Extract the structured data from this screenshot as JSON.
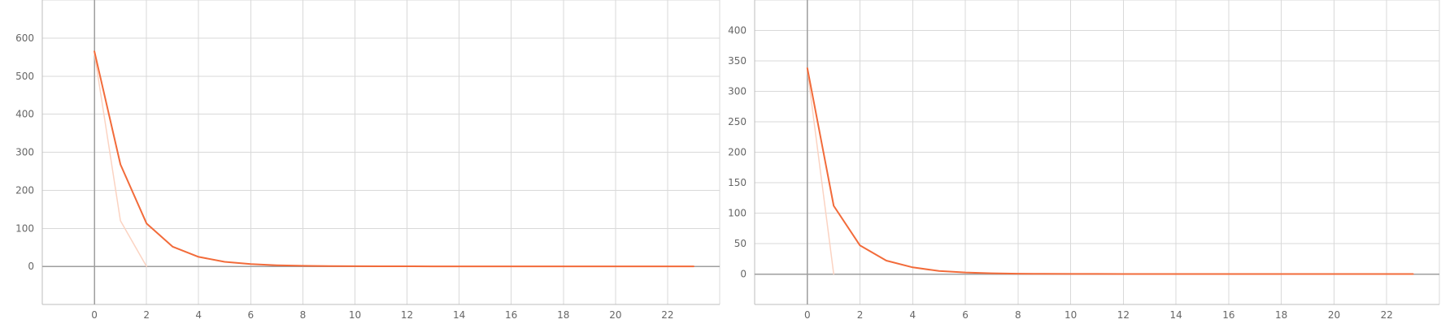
{
  "chart_data": [
    {
      "type": "line",
      "title": "",
      "xlabel": "",
      "ylabel": "",
      "xlim": [
        -2,
        24
      ],
      "ylim": [
        -100,
        700
      ],
      "x_ticks": [
        0,
        2,
        4,
        6,
        8,
        10,
        12,
        14,
        16,
        18,
        20,
        22
      ],
      "y_ticks": [
        0,
        100,
        200,
        300,
        400,
        500,
        600
      ],
      "grid": true,
      "legend": "none",
      "series": [
        {
          "color": "#fbd3c2",
          "x": [
            0,
            1,
            2
          ],
          "y": [
            560,
            120,
            0
          ]
        },
        {
          "color": "#f26b3a",
          "x": [
            0,
            1,
            2,
            3,
            4,
            5,
            6,
            7,
            8,
            9,
            10,
            11,
            12,
            13,
            14,
            15,
            16,
            17,
            18,
            19,
            20,
            21,
            22,
            23
          ],
          "y": [
            565,
            268,
            113,
            52,
            25,
            12,
            6,
            3,
            1.5,
            1,
            0.5,
            0.3,
            0.2,
            0.1,
            0.1,
            0,
            0,
            0,
            0,
            0,
            0,
            0,
            0,
            0
          ]
        }
      ]
    },
    {
      "type": "line",
      "title": "",
      "xlabel": "",
      "ylabel": "",
      "xlim": [
        -2,
        24
      ],
      "ylim": [
        -50,
        450
      ],
      "x_ticks": [
        0,
        2,
        4,
        6,
        8,
        10,
        12,
        14,
        16,
        18,
        20,
        22
      ],
      "y_ticks": [
        0,
        50,
        100,
        150,
        200,
        250,
        300,
        350,
        400
      ],
      "grid": true,
      "legend": "none",
      "series": [
        {
          "color": "#fbd3c2",
          "x": [
            0,
            1
          ],
          "y": [
            335,
            0
          ]
        },
        {
          "color": "#f26b3a",
          "x": [
            0,
            1,
            2,
            3,
            4,
            5,
            6,
            7,
            8,
            9,
            10,
            11,
            12,
            13,
            14,
            15,
            16,
            17,
            18,
            19,
            20,
            21,
            22,
            23
          ],
          "y": [
            338,
            112,
            47,
            22,
            11,
            5,
            2.5,
            1.2,
            0.6,
            0.3,
            0.2,
            0.1,
            0,
            0,
            0,
            0,
            0,
            0,
            0,
            0,
            0,
            0,
            0,
            0
          ]
        }
      ]
    }
  ]
}
